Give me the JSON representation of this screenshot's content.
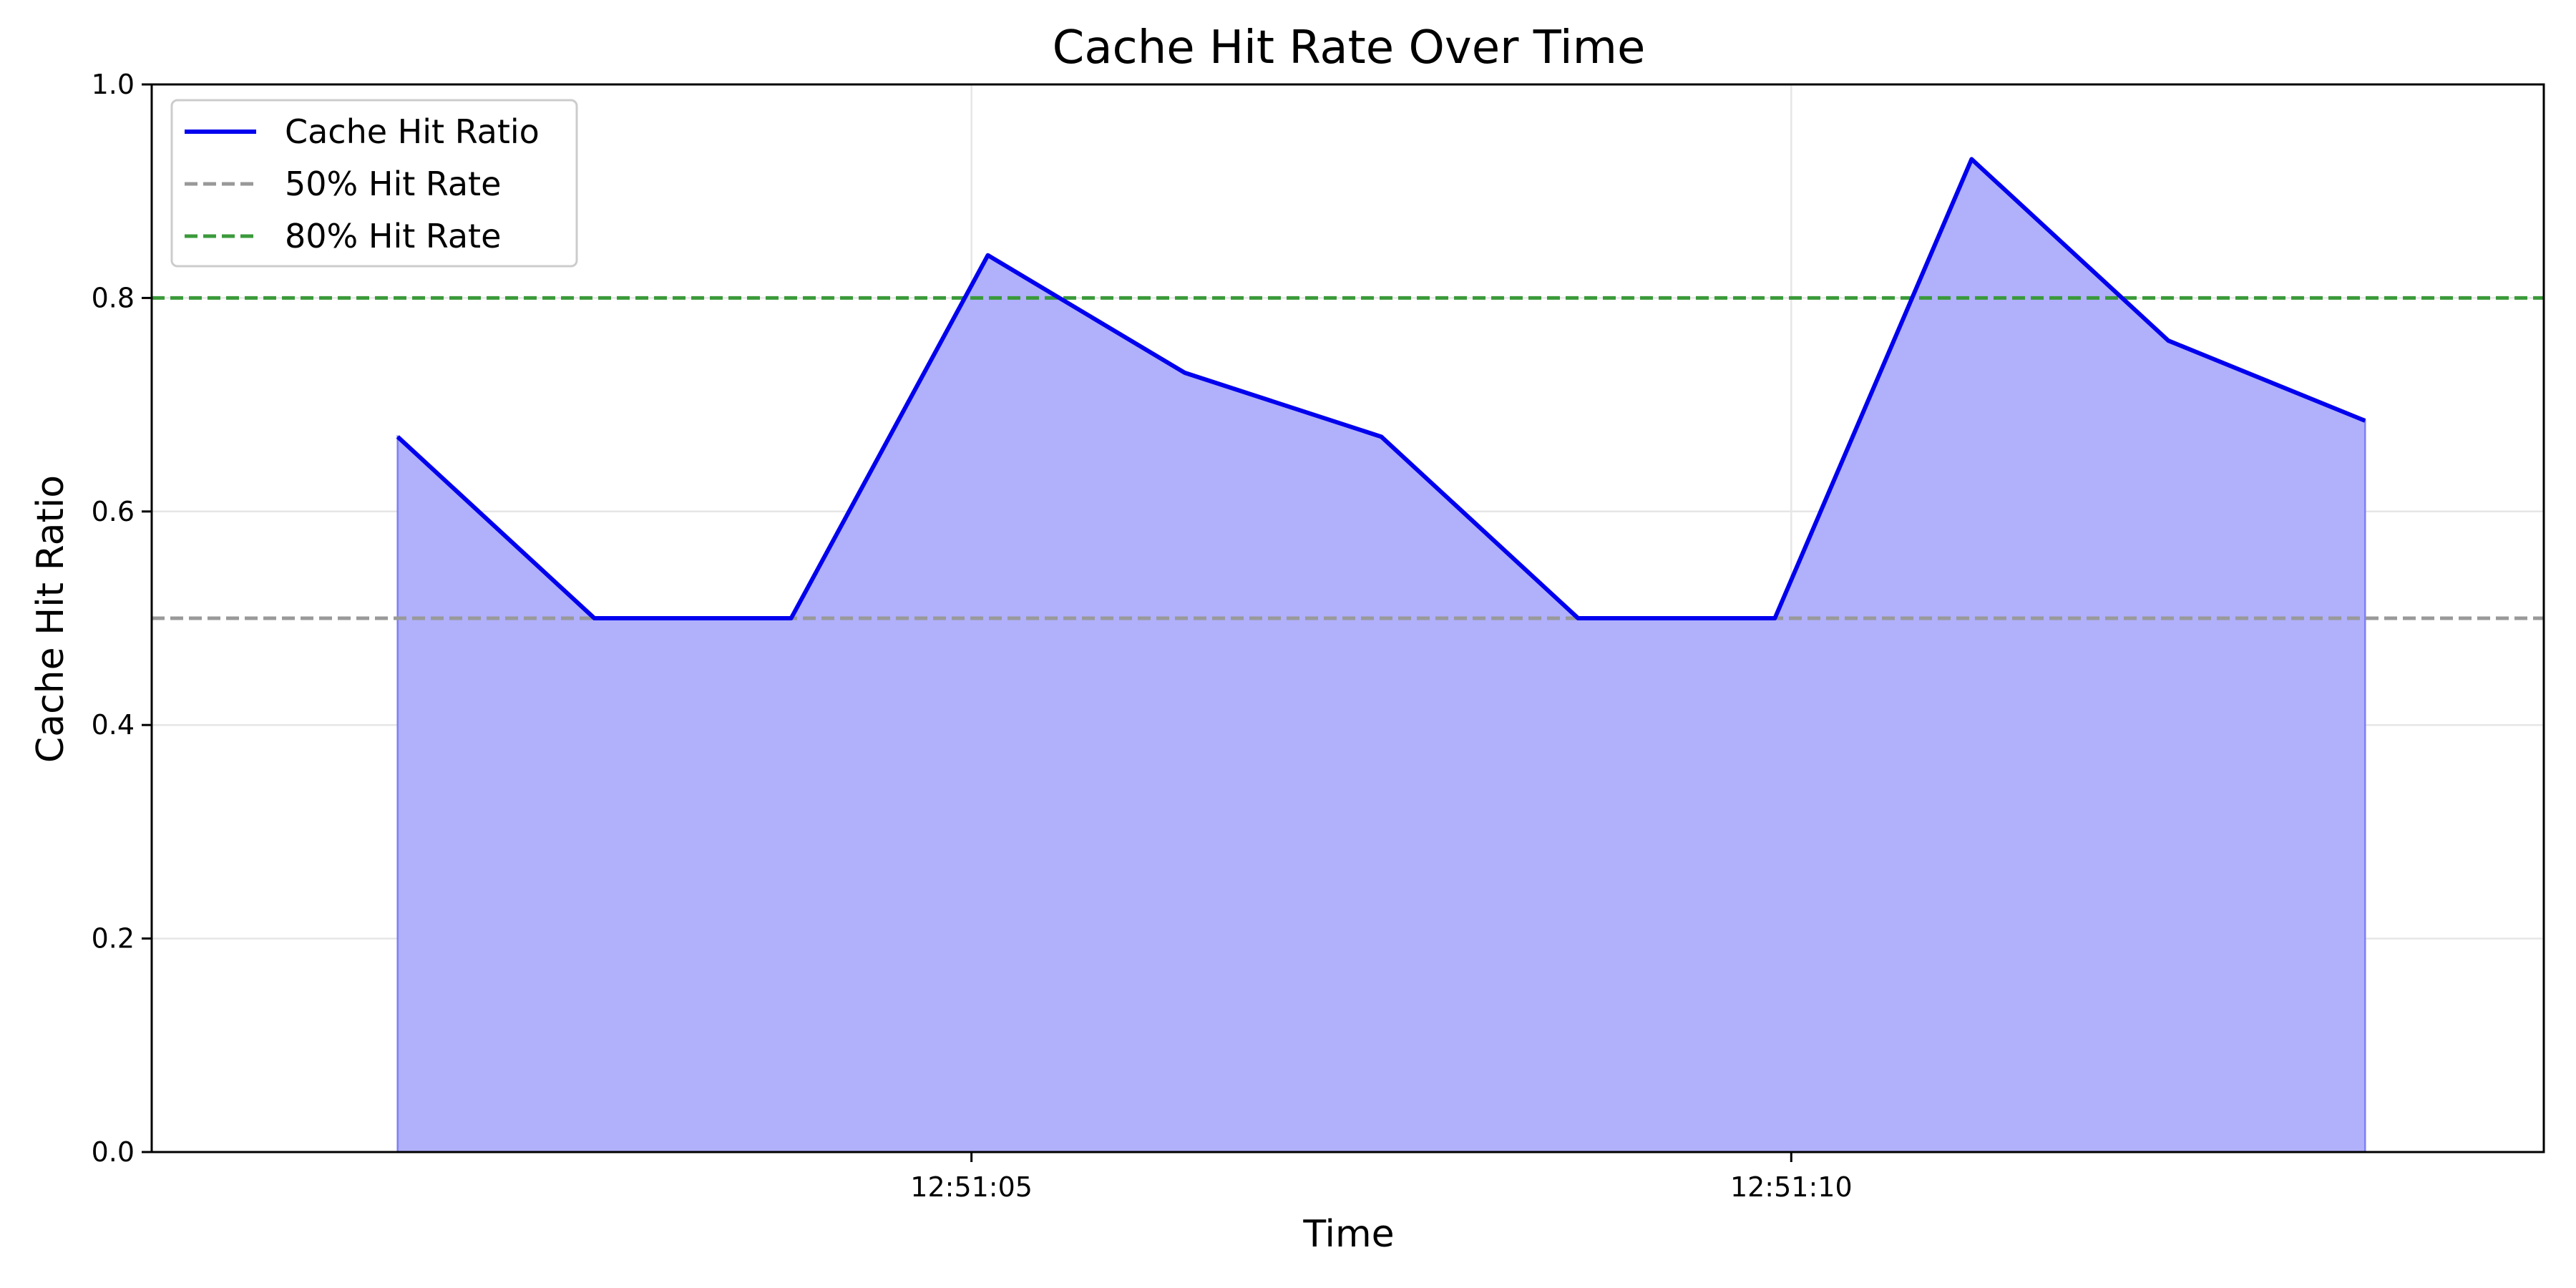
{
  "chart_data": {
    "type": "area",
    "title": "Cache Hit Rate Over Time",
    "xlabel": "Time",
    "ylabel": "Cache Hit Ratio",
    "x": [
      "12:51:01.5",
      "12:51:02.7",
      "12:51:03.9",
      "12:51:05.1",
      "12:51:06.3",
      "12:51:07.5",
      "12:51:08.7",
      "12:51:09.9",
      "12:51:11.1",
      "12:51:12.3",
      "12:51:13.5"
    ],
    "x_ticks": [
      "12:51:05",
      "12:51:10"
    ],
    "ylim": [
      0,
      1
    ],
    "y_ticks": [
      "0.0",
      "0.2",
      "0.4",
      "0.6",
      "0.8",
      "1.0"
    ],
    "grid": true,
    "legend_position": "top-left",
    "series": [
      {
        "name": "Cache Hit Ratio",
        "style": "solid line with filled area",
        "color": "#0000ee",
        "fill_color": "#b0b0fb",
        "values": [
          0.67,
          0.5,
          0.5,
          0.84,
          0.73,
          0.67,
          0.5,
          0.5,
          0.93,
          0.76,
          0.685
        ]
      }
    ],
    "reference_lines": [
      {
        "name": "50% Hit Rate",
        "y": 0.5,
        "style": "dashed",
        "color": "#999999"
      },
      {
        "name": "80% Hit Rate",
        "y": 0.8,
        "style": "dashed",
        "color": "#3a9a3a"
      }
    ]
  }
}
